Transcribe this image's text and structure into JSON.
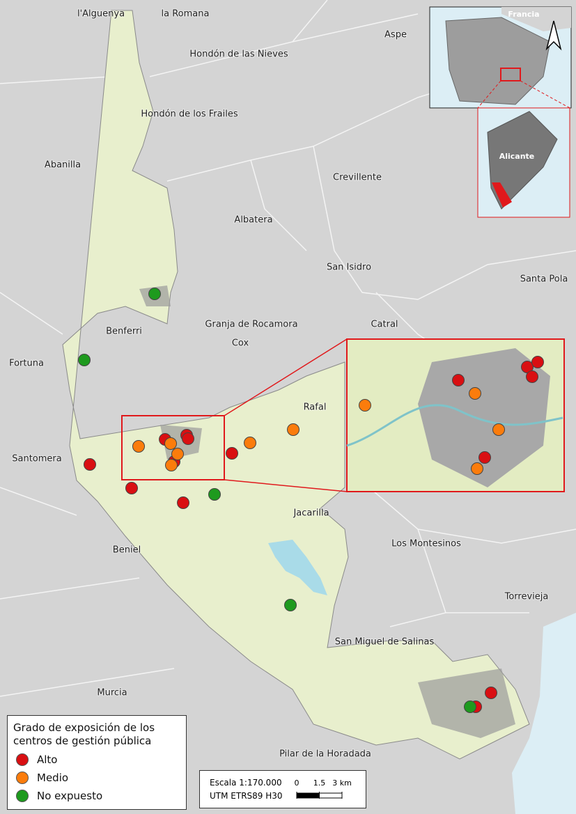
{
  "places": [
    "l'Alguenya",
    "la Romana",
    "Aspe",
    "Hondón de las Nieves",
    "Hondón de los Frailes",
    "Abanilla",
    "Crevillente",
    "Albatera",
    "San Isidro",
    "Santa Pola",
    "Benferri",
    "Granja de Rocamora",
    "Catral",
    "Cox",
    "Fortuna",
    "Rafal",
    "Santomera",
    "Jacarilla",
    "Los Montesinos",
    "Beniel",
    "Torrevieja",
    "San Miguel de Salinas",
    "Murcia",
    "Pilar de la Horadada"
  ],
  "inset": {
    "country": "Francia",
    "province": "Alicante"
  },
  "legend": {
    "title": "Grado de exposición de los centros de gestión pública",
    "items": [
      {
        "label": "Alto",
        "color": "#d90f12"
      },
      {
        "label": "Medio",
        "color": "#fb7c0c"
      },
      {
        "label": "No expuesto",
        "color": "#1e9a1e"
      }
    ]
  },
  "scale": {
    "title": "Escala 1:170.000",
    "crs": "UTM ETRS89 H30",
    "ticks": [
      0,
      1.5,
      {
        "value": 3,
        "label": "3 km"
      }
    ]
  }
}
